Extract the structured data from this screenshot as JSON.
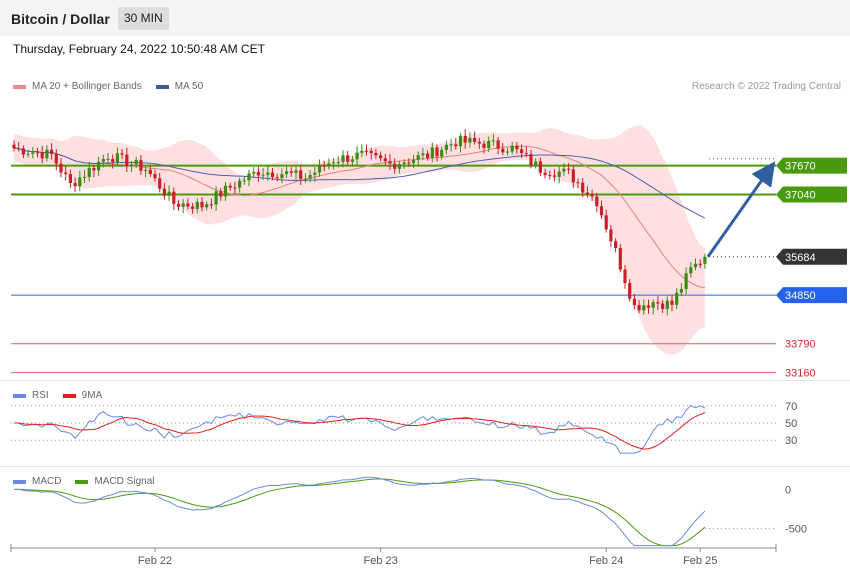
{
  "header": {
    "title": "Bitcoin / Dollar",
    "timeframe": "30 MIN"
  },
  "date": "Thursday, February 24, 2022 10:50:48 AM CET",
  "credit": "Research © 2022 Trading Central",
  "colors": {
    "support_resistance": "#4a9a0e",
    "current": "#333333",
    "pivot": "#2563eb",
    "lower_levels": "#e36060",
    "band": "#ffd5d5",
    "ma20": "#e88080",
    "ma50": "#4a5fb0",
    "rsi": "#6a8ae0",
    "rsi_ma": "#e02020",
    "macd": "#6a8ae0",
    "macd_signal": "#4a9a0e"
  },
  "chart_data": [
    {
      "type": "candlestick",
      "legend": [
        {
          "label": "MA 20 + Bollinger Bands",
          "color": "#f08a8a"
        },
        {
          "label": "MA 50",
          "color": "#3d5a99"
        }
      ],
      "ylim": [
        33000,
        39100
      ],
      "levels": [
        {
          "value": 37670,
          "label": "37670",
          "kind": "resistance"
        },
        {
          "value": 37040,
          "label": "37040",
          "kind": "resistance"
        },
        {
          "value": 35684,
          "label": "35684",
          "kind": "current"
        },
        {
          "value": 34850,
          "label": "34850",
          "kind": "pivot"
        },
        {
          "value": 33790,
          "label": "33790",
          "kind": "support"
        },
        {
          "value": 33160,
          "label": "33160",
          "kind": "support"
        }
      ],
      "projection": {
        "from": 35684,
        "to": 37670,
        "direction": "up"
      },
      "close_anchors": [
        [
          0,
          38050
        ],
        [
          8,
          37900
        ],
        [
          12,
          37250
        ],
        [
          20,
          37900
        ],
        [
          28,
          37600
        ],
        [
          34,
          36850
        ],
        [
          40,
          36800
        ],
        [
          46,
          37200
        ],
        [
          52,
          37550
        ],
        [
          58,
          37500
        ],
        [
          62,
          37400
        ],
        [
          68,
          37800
        ],
        [
          74,
          37900
        ],
        [
          80,
          37700
        ],
        [
          88,
          37900
        ],
        [
          94,
          38200
        ],
        [
          100,
          38150
        ],
        [
          106,
          38050
        ],
        [
          112,
          37600
        ],
        [
          118,
          37500
        ],
        [
          120,
          37300
        ],
        [
          124,
          36900
        ],
        [
          128,
          35800
        ],
        [
          132,
          34600
        ],
        [
          136,
          34700
        ],
        [
          140,
          34650
        ],
        [
          144,
          35400
        ],
        [
          147,
          35684
        ]
      ],
      "x_ticks": [
        {
          "label": "Feb 22",
          "index": 30
        },
        {
          "label": "Feb 23",
          "index": 78
        },
        {
          "label": "Feb 24",
          "index": 126
        },
        {
          "label": "Feb 25",
          "index": 146
        }
      ]
    },
    {
      "type": "line",
      "legend": [
        {
          "label": "RSI",
          "color": "#6a8ae0"
        },
        {
          "label": "9MA",
          "color": "#e02020"
        }
      ],
      "ylim": [
        0,
        100
      ],
      "levels": [
        {
          "value": 70,
          "label": "70"
        },
        {
          "value": 50,
          "label": "50"
        },
        {
          "value": 30,
          "label": "30"
        }
      ]
    },
    {
      "type": "line",
      "legend": [
        {
          "label": "MACD",
          "color": "#6a8ae0"
        },
        {
          "label": "MACD Signal",
          "color": "#4a9a0e"
        }
      ],
      "ylim": [
        -750,
        300
      ],
      "levels": [
        {
          "value": 0,
          "label": "0"
        },
        {
          "value": -500,
          "label": "-500"
        }
      ]
    }
  ]
}
